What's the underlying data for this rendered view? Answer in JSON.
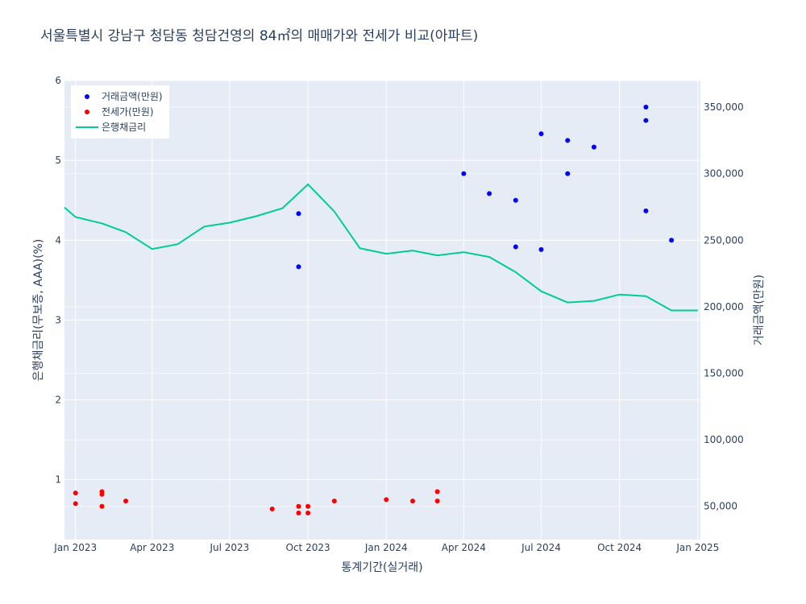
{
  "chart_data": {
    "type": "scatter",
    "title": "서울특별시 강남구 청담동 청담건영의 84㎡의 매매가와 전세가 비교(아파트)",
    "xlabel": "통계기간(실거래)",
    "ylabel_left": "은행채금리(무보증, AAA)(%)",
    "ylabel_right": "거래금액(만원)",
    "x_range": [
      "2022-12-19",
      "2025-01-04"
    ],
    "y_left_range": [
      0.25,
      6
    ],
    "y_right_range": [
      25000,
      370000
    ],
    "x_ticks": [
      {
        "date": "2023-01-01",
        "label": "Jan 2023"
      },
      {
        "date": "2023-04-01",
        "label": "Apr 2023"
      },
      {
        "date": "2023-07-01",
        "label": "Jul 2023"
      },
      {
        "date": "2023-10-01",
        "label": "Oct 2023"
      },
      {
        "date": "2024-01-01",
        "label": "Jan 2024"
      },
      {
        "date": "2024-04-01",
        "label": "Apr 2024"
      },
      {
        "date": "2024-07-01",
        "label": "Jul 2024"
      },
      {
        "date": "2024-10-01",
        "label": "Oct 2024"
      },
      {
        "date": "2025-01-01",
        "label": "Jan 2025"
      }
    ],
    "y_left_ticks": [
      {
        "value": 1,
        "label": "1"
      },
      {
        "value": 2,
        "label": "2"
      },
      {
        "value": 3,
        "label": "3"
      },
      {
        "value": 4,
        "label": "4"
      },
      {
        "value": 5,
        "label": "5"
      },
      {
        "value": 6,
        "label": "6"
      }
    ],
    "y_right_ticks": [
      {
        "value": 50000,
        "label": "50,000"
      },
      {
        "value": 100000,
        "label": "100,000"
      },
      {
        "value": 150000,
        "label": "150,000"
      },
      {
        "value": 200000,
        "label": "200,000"
      },
      {
        "value": 250000,
        "label": "250,000"
      },
      {
        "value": 300000,
        "label": "300,000"
      },
      {
        "value": 350000,
        "label": "350,000"
      }
    ],
    "legend_position": "top-left",
    "grid": true,
    "series": [
      {
        "name": "거래금액(만원)",
        "kind": "markers",
        "axis": "right",
        "color": "#0000ff",
        "points": [
          {
            "x": "2023-09-20",
            "y": 270000
          },
          {
            "x": "2023-09-20",
            "y": 230000
          },
          {
            "x": "2024-04-01",
            "y": 300000
          },
          {
            "x": "2024-05-01",
            "y": 285000
          },
          {
            "x": "2024-06-01",
            "y": 280000
          },
          {
            "x": "2024-06-01",
            "y": 245000
          },
          {
            "x": "2024-07-01",
            "y": 330000
          },
          {
            "x": "2024-07-01",
            "y": 243000
          },
          {
            "x": "2024-08-01",
            "y": 325000
          },
          {
            "x": "2024-08-01",
            "y": 300000
          },
          {
            "x": "2024-09-01",
            "y": 320000
          },
          {
            "x": "2024-11-01",
            "y": 350000
          },
          {
            "x": "2024-11-01",
            "y": 340000
          },
          {
            "x": "2024-11-01",
            "y": 272000
          },
          {
            "x": "2024-12-01",
            "y": 250000
          }
        ]
      },
      {
        "name": "전세가(만원)",
        "kind": "markers",
        "axis": "right",
        "color": "#ff0000",
        "points": [
          {
            "x": "2023-01-01",
            "y": 60000
          },
          {
            "x": "2023-01-01",
            "y": 52000
          },
          {
            "x": "2023-02-01",
            "y": 61000
          },
          {
            "x": "2023-02-01",
            "y": 59000
          },
          {
            "x": "2023-02-01",
            "y": 50000
          },
          {
            "x": "2023-03-01",
            "y": 54000
          },
          {
            "x": "2023-08-20",
            "y": 48000
          },
          {
            "x": "2023-09-20",
            "y": 50000
          },
          {
            "x": "2023-09-20",
            "y": 45000
          },
          {
            "x": "2023-10-01",
            "y": 50000
          },
          {
            "x": "2023-10-01",
            "y": 45000
          },
          {
            "x": "2023-11-01",
            "y": 54000
          },
          {
            "x": "2024-01-01",
            "y": 55000
          },
          {
            "x": "2024-02-01",
            "y": 54000
          },
          {
            "x": "2024-03-01",
            "y": 61000
          },
          {
            "x": "2024-03-01",
            "y": 54000
          }
        ]
      },
      {
        "name": "은행채금리",
        "kind": "line",
        "axis": "left",
        "color": "#00cc96",
        "points": [
          {
            "x": "2022-12-19",
            "y": 4.41
          },
          {
            "x": "2023-01-01",
            "y": 4.29
          },
          {
            "x": "2023-02-01",
            "y": 4.21
          },
          {
            "x": "2023-03-01",
            "y": 4.1
          },
          {
            "x": "2023-04-01",
            "y": 3.89
          },
          {
            "x": "2023-05-01",
            "y": 3.95
          },
          {
            "x": "2023-06-01",
            "y": 4.17
          },
          {
            "x": "2023-07-01",
            "y": 4.22
          },
          {
            "x": "2023-08-01",
            "y": 4.3
          },
          {
            "x": "2023-09-01",
            "y": 4.4
          },
          {
            "x": "2023-10-01",
            "y": 4.7
          },
          {
            "x": "2023-11-01",
            "y": 4.36
          },
          {
            "x": "2023-12-01",
            "y": 3.9
          },
          {
            "x": "2024-01-01",
            "y": 3.83
          },
          {
            "x": "2024-02-01",
            "y": 3.87
          },
          {
            "x": "2024-03-01",
            "y": 3.81
          },
          {
            "x": "2024-04-01",
            "y": 3.85
          },
          {
            "x": "2024-05-01",
            "y": 3.79
          },
          {
            "x": "2024-06-01",
            "y": 3.6
          },
          {
            "x": "2024-07-01",
            "y": 3.36
          },
          {
            "x": "2024-08-01",
            "y": 3.22
          },
          {
            "x": "2024-09-01",
            "y": 3.24
          },
          {
            "x": "2024-10-01",
            "y": 3.32
          },
          {
            "x": "2024-11-01",
            "y": 3.3
          },
          {
            "x": "2024-12-01",
            "y": 3.12
          },
          {
            "x": "2025-01-01",
            "y": 3.12
          }
        ]
      }
    ]
  }
}
